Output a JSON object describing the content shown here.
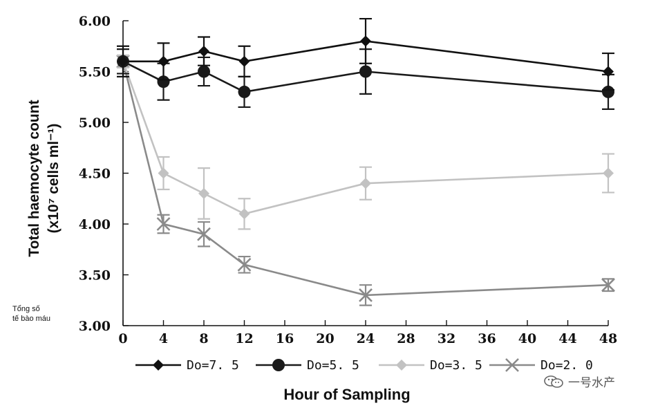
{
  "colors": {
    "do_7_5": "#111111",
    "do_5_5": "#1a1a1a",
    "do_3_5": "#c2c2c2",
    "do_2_0": "#8a8a8a",
    "axis": "#111111"
  },
  "chart_data": {
    "type": "line",
    "title": "",
    "xlabel": "Hour of Sampling",
    "ylabel_line1": "Total haemocyte count",
    "ylabel_line2": "(x10⁷ cells ml⁻¹)",
    "xlim": [
      0,
      48
    ],
    "ylim": [
      3.0,
      6.0
    ],
    "x_ticks": [
      "0",
      "4",
      "8",
      "12",
      "16",
      "20",
      "24",
      "28",
      "32",
      "36",
      "40",
      "44",
      "48"
    ],
    "y_ticks": [
      "3.00",
      "3.50",
      "4.00",
      "4.50",
      "5.00",
      "5.50",
      "6.00"
    ],
    "x": [
      0,
      4,
      8,
      12,
      24,
      48
    ],
    "series": [
      {
        "name": "Do=7.5",
        "marker": "diamond",
        "values": [
          5.6,
          5.6,
          5.7,
          5.6,
          5.8,
          5.5
        ],
        "errors": [
          0.15,
          0.18,
          0.14,
          0.15,
          0.22,
          0.18
        ]
      },
      {
        "name": "Do=5.5",
        "marker": "circle",
        "values": [
          5.6,
          5.4,
          5.5,
          5.3,
          5.5,
          5.3
        ],
        "errors": [
          0.12,
          0.18,
          0.14,
          0.15,
          0.22,
          0.17
        ]
      },
      {
        "name": "Do=3.5",
        "marker": "diamond",
        "values": [
          5.6,
          4.5,
          4.3,
          4.1,
          4.4,
          4.5
        ],
        "errors": [
          0.06,
          0.16,
          0.25,
          0.15,
          0.16,
          0.19
        ]
      },
      {
        "name": "Do=2.0",
        "marker": "cross",
        "values": [
          5.6,
          4.0,
          3.9,
          3.6,
          3.3,
          3.4
        ],
        "errors": [
          0.06,
          0.09,
          0.12,
          0.08,
          0.1,
          0.06
        ]
      }
    ],
    "legend_labels": [
      "Do=7. 5",
      "Do=5. 5",
      "Do=3. 5",
      "Do=2. 0"
    ],
    "legend_position": "bottom",
    "grid": false
  },
  "side_note": {
    "line1": "Tổng số",
    "line2": "tế bào máu"
  },
  "watermark": {
    "text": "一号水产",
    "icon": "wechat-icon"
  }
}
